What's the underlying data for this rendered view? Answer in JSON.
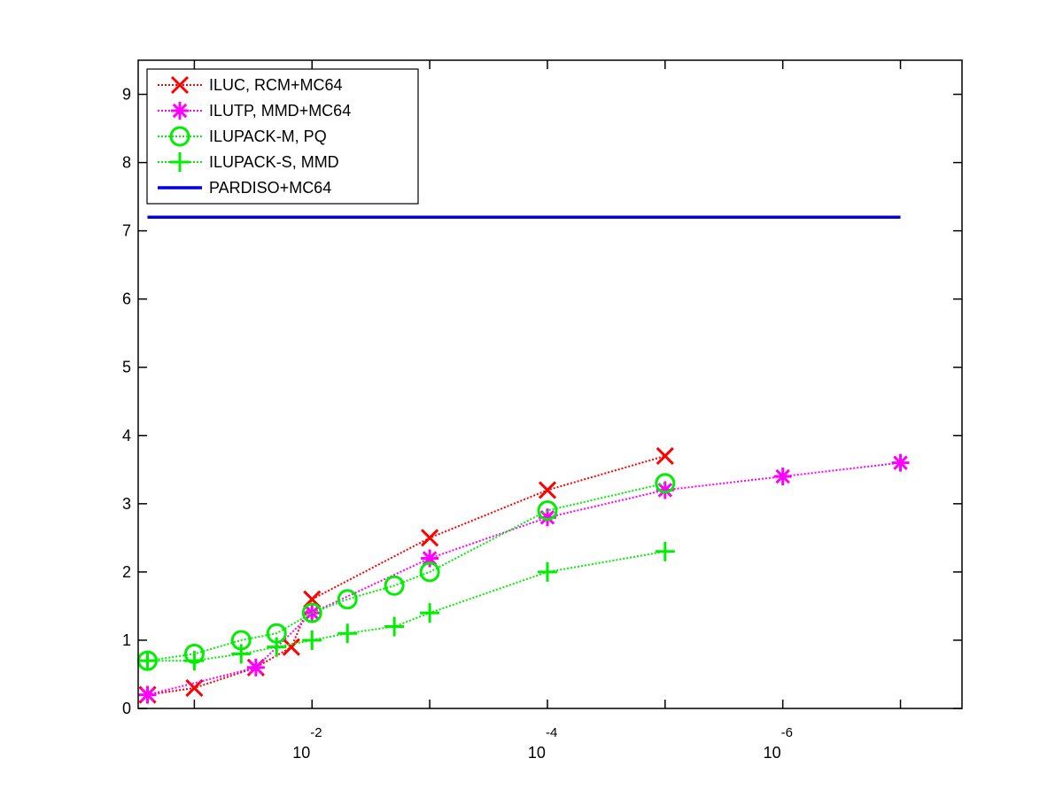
{
  "chart_data": {
    "type": "line",
    "title": "",
    "xlabel": "",
    "ylabel": "",
    "xscale": "log",
    "x_reversed": true,
    "xlim": [
      0.3,
      3e-08
    ],
    "ylim": [
      0,
      9.5
    ],
    "yticks": [
      0,
      1,
      2,
      3,
      4,
      5,
      6,
      7,
      8,
      9
    ],
    "xticks": [
      {
        "value": 0.01,
        "base": "10",
        "exp": "-2"
      },
      {
        "value": 0.0001,
        "base": "10",
        "exp": "-4"
      },
      {
        "value": 1e-06,
        "base": "10",
        "exp": "-6"
      }
    ],
    "legend_position": "top-left",
    "grid": false,
    "series": [
      {
        "name": "ILUC, RCM+MC64",
        "color": "#ff0000",
        "marker": "x",
        "linestyle": "dotted",
        "x": [
          0.25,
          0.1,
          0.03,
          0.015,
          0.01,
          0.001,
          0.0001,
          1e-05
        ],
        "y": [
          0.2,
          0.3,
          0.6,
          0.9,
          1.6,
          2.5,
          3.2,
          3.7
        ]
      },
      {
        "name": "ILUTP, MMD+MC64",
        "color": "#ff00ff",
        "marker": "asterisk",
        "linestyle": "dotted",
        "x": [
          0.25,
          0.03,
          0.01,
          0.001,
          0.0001,
          1e-05,
          1e-06,
          1e-07
        ],
        "y": [
          0.2,
          0.6,
          1.4,
          2.2,
          2.8,
          3.2,
          3.4,
          3.6
        ]
      },
      {
        "name": "ILUPACK-M, PQ",
        "color": "#00ee00",
        "marker": "circle",
        "linestyle": "dotted",
        "x": [
          0.25,
          0.1,
          0.04,
          0.02,
          0.01,
          0.005,
          0.002,
          0.001,
          0.0001,
          1e-05
        ],
        "y": [
          0.7,
          0.8,
          1.0,
          1.1,
          1.4,
          1.6,
          1.8,
          2.0,
          2.9,
          3.3
        ]
      },
      {
        "name": "ILUPACK-S, MMD",
        "color": "#00ee00",
        "marker": "plus",
        "linestyle": "dotted",
        "x": [
          0.25,
          0.1,
          0.04,
          0.02,
          0.01,
          0.005,
          0.002,
          0.001,
          0.0001,
          1e-05
        ],
        "y": [
          0.7,
          0.7,
          0.8,
          0.9,
          1.0,
          1.1,
          1.2,
          1.4,
          2.0,
          2.3
        ]
      },
      {
        "name": "PARDISO+MC64",
        "color": "#0000dd",
        "marker": "none",
        "linestyle": "solid",
        "x": [
          0.25,
          1e-07
        ],
        "y": [
          7.2,
          7.2
        ]
      }
    ]
  }
}
